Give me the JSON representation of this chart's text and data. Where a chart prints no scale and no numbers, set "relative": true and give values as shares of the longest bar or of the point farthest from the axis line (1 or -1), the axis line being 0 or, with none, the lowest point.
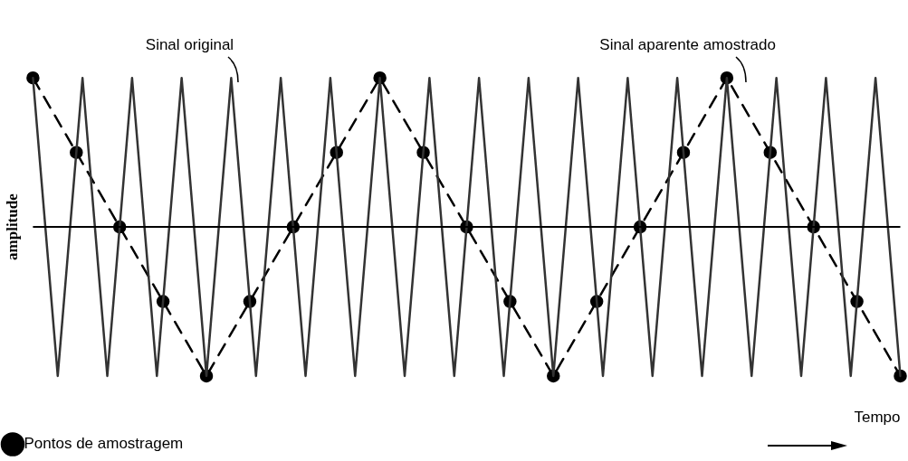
{
  "chart_data": {
    "type": "line",
    "relative": true,
    "xlabel": "Tempo",
    "ylabel": "amplitude",
    "legend": "bottom left",
    "categories": [
      null,
      null,
      null,
      null,
      null,
      null,
      null,
      null,
      null,
      null,
      null,
      null,
      null,
      null,
      null,
      null,
      null,
      null,
      null,
      null,
      null,
      null,
      null,
      null,
      null,
      null,
      null,
      null,
      null,
      null,
      null,
      null,
      null,
      null,
      null,
      null,
      null,
      null,
      null,
      null,
      null,
      null,
      null,
      null,
      null,
      null,
      null,
      null,
      null,
      null,
      null,
      null,
      null,
      null,
      null,
      null,
      null,
      null,
      null,
      null,
      null,
      null,
      null,
      null,
      null,
      null,
      null,
      null,
      null,
      null,
      null,
      null,
      null,
      null,
      null,
      null,
      null,
      null,
      null,
      null,
      null,
      null,
      null,
      null,
      null,
      null,
      null,
      null,
      null,
      null,
      null,
      null,
      null,
      null,
      null,
      null,
      null,
      null,
      null,
      null,
      null,
      null,
      null,
      null,
      null,
      null,
      null,
      null,
      null,
      null,
      null,
      null,
      null,
      null,
      null,
      null,
      null,
      null,
      null,
      null,
      null,
      null,
      null,
      null,
      null,
      null,
      null,
      null,
      null,
      null,
      null,
      null,
      null,
      null,
      null,
      null,
      null,
      null,
      null,
      null,
      null
    ],
    "series": [
      {
        "color": "#333333",
        "line_style": "solid",
        "marker": "none",
        "values": [
          1,
          null,
          null,
          null,
          -1,
          null,
          null,
          null,
          1,
          null,
          null,
          null,
          -1,
          null,
          null,
          null,
          1,
          null,
          null,
          null,
          -1,
          null,
          null,
          null,
          1,
          null,
          null,
          null,
          -1,
          null,
          null,
          null,
          1,
          null,
          null,
          null,
          -1,
          null,
          null,
          null,
          1,
          null,
          null,
          null,
          -1,
          null,
          null,
          null,
          1,
          null,
          null,
          null,
          -1,
          null,
          null,
          null,
          1,
          null,
          null,
          null,
          -1,
          null,
          null,
          null,
          1,
          null,
          null,
          null,
          -1,
          null,
          null,
          null,
          1,
          null,
          null,
          null,
          -1,
          null,
          null,
          null,
          1,
          null,
          null,
          null,
          -1,
          null,
          null,
          null,
          1,
          null,
          null,
          null,
          -1,
          null,
          null,
          null,
          1,
          null,
          null,
          null,
          -1,
          null,
          null,
          null,
          1,
          null,
          null,
          null,
          -1,
          null,
          null,
          null,
          1,
          null,
          null,
          null,
          -1,
          null,
          null,
          null,
          1,
          null,
          null,
          null,
          -1,
          null,
          null,
          null,
          1,
          null,
          null,
          null,
          -1,
          null,
          null,
          null,
          1,
          null,
          null,
          null,
          -1
        ]
      },
      {
        "name": "Pontos de amostragem",
        "color": "#000000",
        "line_style": "dashed",
        "marker": "circle",
        "values": [
          1,
          null,
          null,
          null,
          null,
          null,
          null,
          0.5,
          null,
          null,
          null,
          null,
          null,
          null,
          0,
          null,
          null,
          null,
          null,
          null,
          null,
          -0.5,
          null,
          null,
          null,
          null,
          null,
          null,
          -1,
          null,
          null,
          null,
          null,
          null,
          null,
          -0.5,
          null,
          null,
          null,
          null,
          null,
          null,
          0,
          null,
          null,
          null,
          null,
          null,
          null,
          0.5,
          null,
          null,
          null,
          null,
          null,
          null,
          1,
          null,
          null,
          null,
          null,
          null,
          null,
          0.5,
          null,
          null,
          null,
          null,
          null,
          null,
          0,
          null,
          null,
          null,
          null,
          null,
          null,
          -0.5,
          null,
          null,
          null,
          null,
          null,
          null,
          -1,
          null,
          null,
          null,
          null,
          null,
          null,
          -0.5,
          null,
          null,
          null,
          null,
          null,
          null,
          0,
          null,
          null,
          null,
          null,
          null,
          null,
          0.5,
          null,
          null,
          null,
          null,
          null,
          null,
          1,
          null,
          null,
          null,
          null,
          null,
          null,
          0.5,
          null,
          null,
          null,
          null,
          null,
          null,
          0,
          null,
          null,
          null,
          null,
          null,
          null,
          -0.5,
          null,
          null,
          null,
          null,
          null,
          null,
          -1
        ]
      }
    ],
    "annotations": [
      "Sinal original",
      "Sinal aparente amostrado"
    ]
  }
}
